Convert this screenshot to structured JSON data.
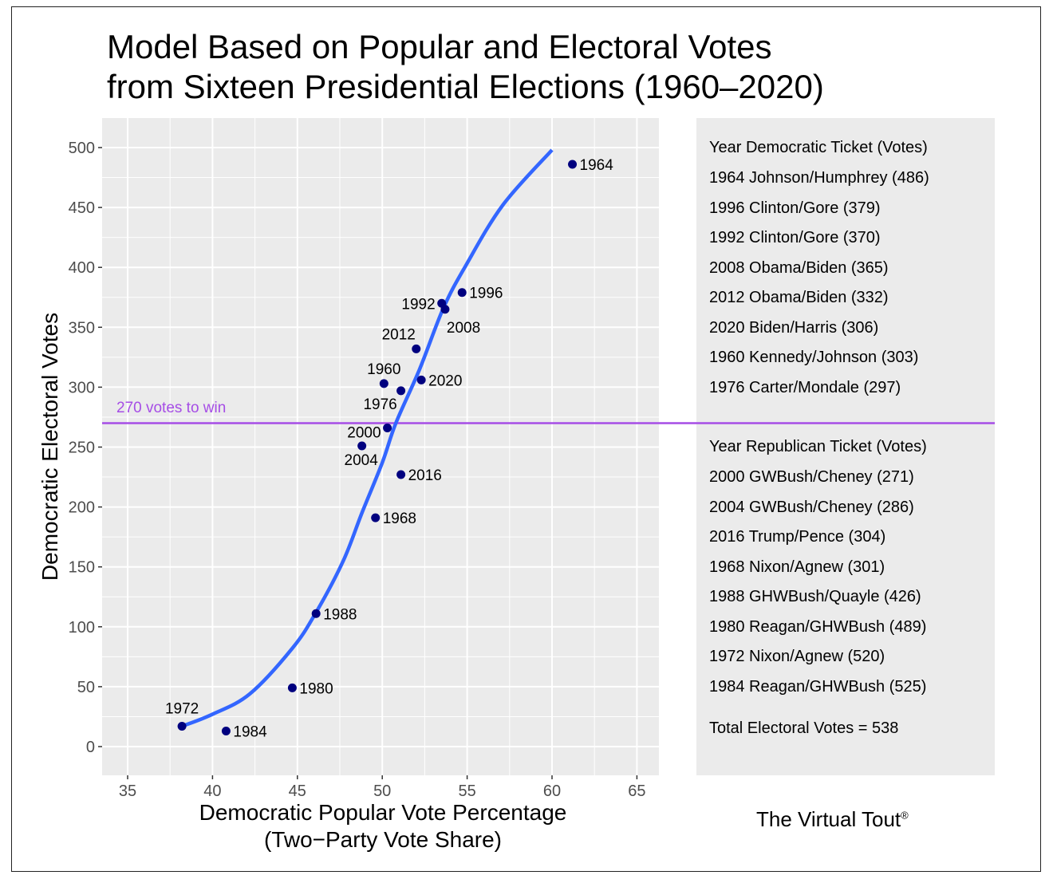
{
  "title_lines": [
    "Model Based on Popular and Electoral Votes",
    "from Sixteen Presidential Elections (1960–2020)"
  ],
  "brand": {
    "name": "The Virtual Tout",
    "mark": "®"
  },
  "legend": {
    "dem_header": "Year  Democratic Ticket (Votes)",
    "dem_rows": [
      "1964 Johnson/Humphrey (486)",
      "1996 Clinton/Gore (379)",
      "1992 Clinton/Gore (370)",
      "2008 Obama/Biden (365)",
      "2012 Obama/Biden (332)",
      "2020 Biden/Harris (306)",
      "1960 Kennedy/Johnson (303)",
      "1976 Carter/Mondale (297)"
    ],
    "rep_header": "Year  Republican Ticket (Votes)",
    "rep_rows": [
      "2000 GWBush/Cheney (271)",
      "2004 GWBush/Cheney (286)",
      "2016 Trump/Pence (304)",
      "1968 Nixon/Agnew (301)",
      "1988 GHWBush/Quayle (426)",
      "1980 Reagan/GHWBush (489)",
      "1972 Nixon/Agnew (520)",
      "1984 Reagan/GHWBush (525)"
    ],
    "total": "Total Electoral Votes = 538"
  },
  "chart_data": {
    "type": "scatter",
    "xlabel_lines": [
      "Democratic Popular Vote Percentage",
      "(Two−Party Vote Share)"
    ],
    "ylabel": "Democratic Electoral Votes",
    "xlim": [
      33.4,
      66.4
    ],
    "ylim": [
      -25,
      525
    ],
    "xticks": [
      35,
      40,
      45,
      50,
      55,
      60,
      65
    ],
    "yticks": [
      0,
      50,
      100,
      150,
      200,
      250,
      300,
      350,
      400,
      450,
      500
    ],
    "grid": true,
    "threshold": {
      "value": 270,
      "label": "270 votes to win",
      "color": "#a64de6"
    },
    "points_color": "#00007f",
    "curve_color": "#3366ff",
    "points": [
      {
        "year": "1964",
        "x": 61.2,
        "y": 486
      },
      {
        "year": "1996",
        "x": 54.7,
        "y": 379
      },
      {
        "year": "1992",
        "x": 53.5,
        "y": 370
      },
      {
        "year": "2008",
        "x": 53.7,
        "y": 365
      },
      {
        "year": "2012",
        "x": 52.0,
        "y": 332
      },
      {
        "year": "2020",
        "x": 52.3,
        "y": 306
      },
      {
        "year": "1960",
        "x": 50.1,
        "y": 303
      },
      {
        "year": "1976",
        "x": 51.1,
        "y": 297
      },
      {
        "year": "2000",
        "x": 50.3,
        "y": 266
      },
      {
        "year": "2004",
        "x": 48.8,
        "y": 251
      },
      {
        "year": "2016",
        "x": 51.1,
        "y": 227
      },
      {
        "year": "1968",
        "x": 49.6,
        "y": 191
      },
      {
        "year": "1988",
        "x": 46.1,
        "y": 111
      },
      {
        "year": "1980",
        "x": 44.7,
        "y": 49
      },
      {
        "year": "1972",
        "x": 38.2,
        "y": 17
      },
      {
        "year": "1984",
        "x": 40.8,
        "y": 13
      }
    ],
    "fit_curve": [
      [
        38.2,
        17
      ],
      [
        40,
        27
      ],
      [
        42.2,
        44
      ],
      [
        44.7,
        82
      ],
      [
        46.1,
        112
      ],
      [
        47.7,
        155
      ],
      [
        48.8,
        195
      ],
      [
        50.0,
        237
      ],
      [
        50.8,
        270
      ],
      [
        52.2,
        315
      ],
      [
        53.6,
        366
      ],
      [
        54.9,
        401
      ],
      [
        57.1,
        452
      ],
      [
        60.0,
        498
      ]
    ]
  }
}
